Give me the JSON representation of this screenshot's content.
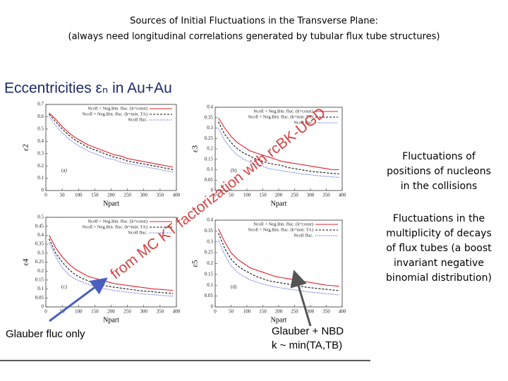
{
  "header": {
    "title": "Sources of Initial Fluctuations in the Transverse Plane:",
    "subtitle": "(always need longitudinal correlations generated by tubular flux tube structures)"
  },
  "heading": "Eccentricities εₙ in Au+Au",
  "overlay": "from MC KT factorization with rcBK-UGD",
  "notes": {
    "positions": [
      "Fluctuations of",
      "positions of nucleons",
      "in the collisions"
    ],
    "multiplicity": [
      "Fluctuations in the",
      "multiplicity of decays",
      "of flux tubes (a boost",
      "invariant negative",
      "binomial distribution)"
    ]
  },
  "annotations": {
    "glauber": "Glauber fluc only",
    "nbd": "Glauber + NBD",
    "nbd_k": "k ~ min(TA,TB)"
  },
  "chart_data": [
    {
      "type": "line",
      "panel": "(a)",
      "ylabel": "ε2",
      "xlabel": "Npart",
      "x": [
        10,
        30,
        50,
        70,
        90,
        110,
        130,
        150,
        170,
        190,
        210,
        230,
        250,
        270,
        290,
        310,
        330,
        350,
        370,
        390
      ],
      "xlim": [
        0,
        400
      ],
      "xticks": [
        0,
        50,
        100,
        150,
        200,
        250,
        300,
        350,
        400
      ],
      "ylim": [
        0,
        0.7
      ],
      "yticks": [
        0,
        0.1,
        0.2,
        0.3,
        0.4,
        0.5,
        0.6,
        0.7
      ],
      "series": [
        {
          "name": "Ncoll + Neg.Bin. fluc. (k=const)",
          "color": "#e0202a",
          "dash": "none",
          "values": [
            0.63,
            0.58,
            0.52,
            0.47,
            0.43,
            0.4,
            0.37,
            0.35,
            0.33,
            0.31,
            0.29,
            0.28,
            0.26,
            0.25,
            0.24,
            0.23,
            0.22,
            0.21,
            0.2,
            0.19
          ]
        },
        {
          "name": "Ncoll + Neg.Bin. fluc. (k=min. TA)",
          "color": "#111111",
          "dash": "3,2",
          "values": [
            0.62,
            0.56,
            0.5,
            0.45,
            0.41,
            0.38,
            0.35,
            0.33,
            0.31,
            0.29,
            0.27,
            0.26,
            0.24,
            0.23,
            0.22,
            0.21,
            0.2,
            0.19,
            0.18,
            0.17
          ]
        },
        {
          "name": "Ncoll fluc.",
          "color": "#2a3fd0",
          "dash": "1,1.5",
          "values": [
            0.6,
            0.53,
            0.47,
            0.42,
            0.38,
            0.35,
            0.32,
            0.3,
            0.28,
            0.26,
            0.25,
            0.23,
            0.22,
            0.21,
            0.2,
            0.19,
            0.18,
            0.17,
            0.16,
            0.15
          ]
        }
      ]
    },
    {
      "type": "line",
      "panel": "(b)",
      "ylabel": "ε3",
      "xlabel": "Npart",
      "x": [
        10,
        30,
        50,
        70,
        90,
        110,
        130,
        150,
        170,
        190,
        210,
        230,
        250,
        270,
        290,
        310,
        330,
        350,
        370,
        390
      ],
      "xlim": [
        0,
        400
      ],
      "xticks": [
        0,
        50,
        100,
        150,
        200,
        250,
        300,
        350,
        400
      ],
      "ylim": [
        0,
        0.4
      ],
      "yticks": [
        0,
        0.05,
        0.1,
        0.15,
        0.2,
        0.25,
        0.3,
        0.35,
        0.4
      ],
      "series": [
        {
          "name": "Ncoll + Neg.Bin. fluc. (k=const)",
          "color": "#e0202a",
          "dash": "none",
          "values": [
            0.35,
            0.3,
            0.26,
            0.23,
            0.21,
            0.19,
            0.18,
            0.17,
            0.16,
            0.15,
            0.14,
            0.135,
            0.13,
            0.125,
            0.12,
            0.115,
            0.11,
            0.105,
            0.1,
            0.1
          ]
        },
        {
          "name": "Ncoll + Neg.Bin. fluc. (k=min. TA)",
          "color": "#111111",
          "dash": "3,2",
          "values": [
            0.33,
            0.27,
            0.23,
            0.2,
            0.18,
            0.165,
            0.15,
            0.14,
            0.13,
            0.125,
            0.12,
            0.11,
            0.105,
            0.1,
            0.095,
            0.09,
            0.088,
            0.085,
            0.082,
            0.08
          ]
        },
        {
          "name": "Ncoll fluc.",
          "color": "#2a3fd0",
          "dash": "1,1.5",
          "values": [
            0.3,
            0.24,
            0.2,
            0.17,
            0.15,
            0.135,
            0.125,
            0.115,
            0.105,
            0.1,
            0.095,
            0.09,
            0.085,
            0.08,
            0.077,
            0.074,
            0.07,
            0.068,
            0.065,
            0.063
          ]
        }
      ]
    },
    {
      "type": "line",
      "panel": "(c)",
      "ylabel": "ε4",
      "xlabel": "Npart",
      "x": [
        10,
        30,
        50,
        70,
        90,
        110,
        130,
        150,
        170,
        190,
        210,
        230,
        250,
        270,
        290,
        310,
        330,
        350,
        370,
        390
      ],
      "xlim": [
        0,
        400
      ],
      "xticks": [
        0,
        50,
        100,
        150,
        200,
        250,
        300,
        350,
        400
      ],
      "ylim": [
        0,
        0.5
      ],
      "yticks": [
        0,
        0.05,
        0.1,
        0.15,
        0.2,
        0.25,
        0.3,
        0.35,
        0.4,
        0.45,
        0.5
      ],
      "series": [
        {
          "name": "Ncoll + Neg.Bin. fluc. (k=const)",
          "color": "#e0202a",
          "dash": "none",
          "values": [
            0.4,
            0.33,
            0.28,
            0.24,
            0.21,
            0.19,
            0.17,
            0.16,
            0.15,
            0.14,
            0.13,
            0.125,
            0.12,
            0.115,
            0.11,
            0.105,
            0.1,
            0.098,
            0.095,
            0.092
          ]
        },
        {
          "name": "Ncoll + Neg.Bin. fluc. (k=min. TA)",
          "color": "#111111",
          "dash": "3,2",
          "values": [
            0.38,
            0.3,
            0.25,
            0.21,
            0.18,
            0.16,
            0.145,
            0.135,
            0.125,
            0.115,
            0.11,
            0.105,
            0.1,
            0.095,
            0.09,
            0.087,
            0.084,
            0.081,
            0.078,
            0.075
          ]
        },
        {
          "name": "Ncoll fluc.",
          "color": "#2a3fd0",
          "dash": "1,1.5",
          "values": [
            0.36,
            0.28,
            0.22,
            0.18,
            0.155,
            0.14,
            0.125,
            0.115,
            0.105,
            0.098,
            0.092,
            0.087,
            0.082,
            0.078,
            0.074,
            0.071,
            0.068,
            0.065,
            0.062,
            0.06
          ]
        }
      ]
    },
    {
      "type": "line",
      "panel": "(d)",
      "ylabel": "ε5",
      "xlabel": "Npart",
      "x": [
        10,
        30,
        50,
        70,
        90,
        110,
        130,
        150,
        170,
        190,
        210,
        230,
        250,
        270,
        290,
        310,
        330,
        350,
        370,
        390
      ],
      "xlim": [
        0,
        400
      ],
      "xticks": [
        0,
        50,
        100,
        150,
        200,
        250,
        300,
        350,
        400
      ],
      "ylim": [
        0,
        0.4
      ],
      "yticks": [
        0,
        0.05,
        0.1,
        0.15,
        0.2,
        0.25,
        0.3,
        0.35,
        0.4
      ],
      "series": [
        {
          "name": "Ncoll + Neg.Bin. fluc. (k=const)",
          "color": "#e0202a",
          "dash": "none",
          "values": [
            0.36,
            0.3,
            0.25,
            0.22,
            0.2,
            0.18,
            0.17,
            0.16,
            0.15,
            0.14,
            0.135,
            0.13,
            0.125,
            0.12,
            0.115,
            0.11,
            0.105,
            0.1,
            0.098,
            0.095
          ]
        },
        {
          "name": "Ncoll + Neg.Bin. fluc. (k=min. TA)",
          "color": "#111111",
          "dash": "3,2",
          "values": [
            0.34,
            0.27,
            0.22,
            0.19,
            0.17,
            0.155,
            0.14,
            0.13,
            0.12,
            0.115,
            0.11,
            0.105,
            0.1,
            0.095,
            0.09,
            0.087,
            0.084,
            0.081,
            0.078,
            0.075
          ]
        },
        {
          "name": "Ncoll fluc.",
          "color": "#2a3fd0",
          "dash": "1,1.5",
          "values": [
            0.31,
            0.24,
            0.19,
            0.16,
            0.14,
            0.125,
            0.115,
            0.105,
            0.098,
            0.092,
            0.087,
            0.082,
            0.078,
            0.074,
            0.07,
            0.067,
            0.064,
            0.061,
            0.058,
            0.056
          ]
        }
      ]
    }
  ]
}
